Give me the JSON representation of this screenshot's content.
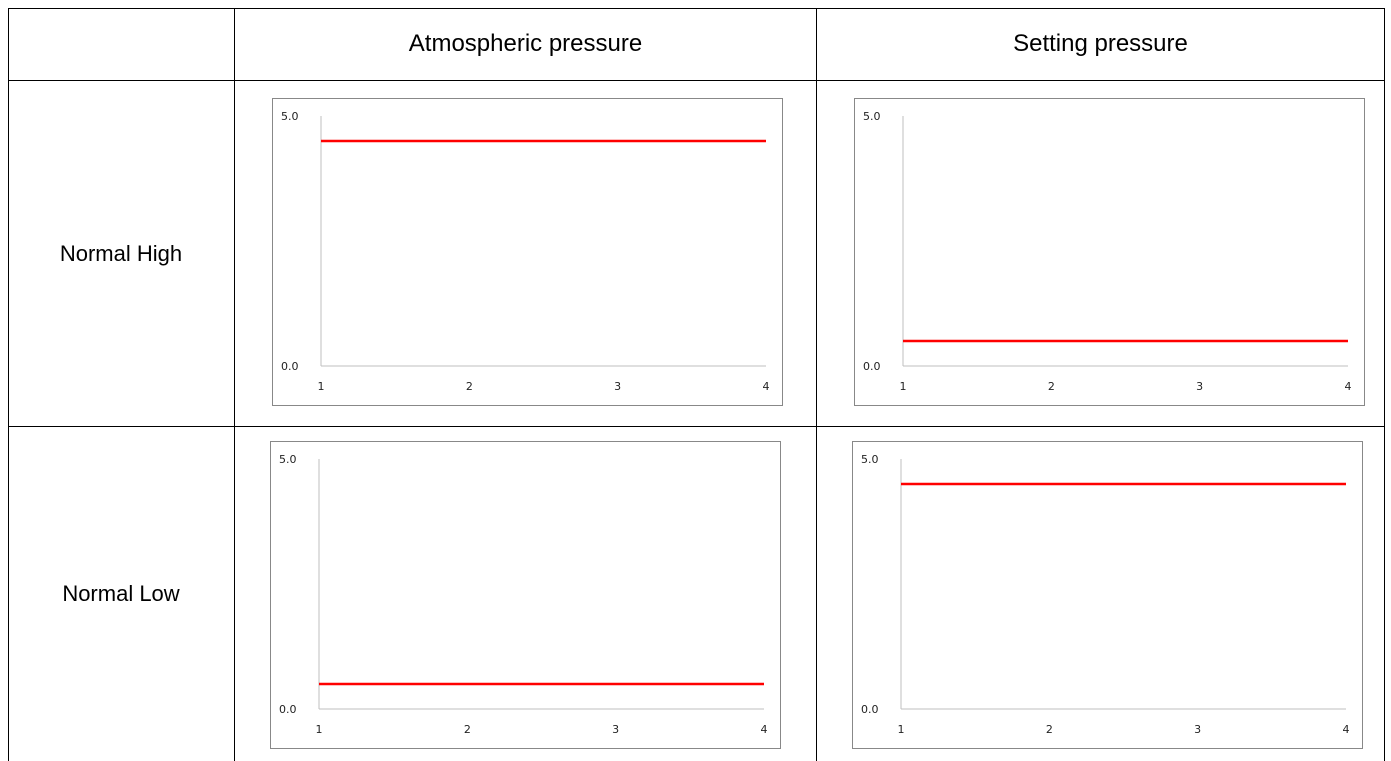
{
  "table": {
    "column_headers": [
      "",
      "Atmospheric pressure",
      "Setting pressure"
    ],
    "row_labels": [
      "Normal High",
      "Normal Low"
    ]
  },
  "colors": {
    "line": "#ff0000",
    "axis": "#bfbfbf",
    "border": "#888888"
  },
  "chart_data": [
    {
      "type": "line",
      "row": "Normal High",
      "column": "Atmospheric pressure",
      "x": [
        1,
        2,
        3,
        4
      ],
      "y": [
        4.5,
        4.5,
        4.5,
        4.5
      ],
      "ylim": [
        0.0,
        5.0
      ],
      "yticks": [
        "0.0",
        "5.0"
      ],
      "xticks": [
        "1",
        "2",
        "3",
        "4"
      ],
      "grid": false,
      "legend": "none"
    },
    {
      "type": "line",
      "row": "Normal High",
      "column": "Setting pressure",
      "x": [
        1,
        2,
        3,
        4
      ],
      "y": [
        0.5,
        0.5,
        0.5,
        0.5
      ],
      "ylim": [
        0.0,
        5.0
      ],
      "yticks": [
        "0.0",
        "5.0"
      ],
      "xticks": [
        "1",
        "2",
        "3",
        "4"
      ],
      "grid": false,
      "legend": "none"
    },
    {
      "type": "line",
      "row": "Normal Low",
      "column": "Atmospheric pressure",
      "x": [
        1,
        2,
        3,
        4
      ],
      "y": [
        0.5,
        0.5,
        0.5,
        0.5
      ],
      "ylim": [
        0.0,
        5.0
      ],
      "yticks": [
        "0.0",
        "5.0"
      ],
      "xticks": [
        "1",
        "2",
        "3",
        "4"
      ],
      "grid": false,
      "legend": "none"
    },
    {
      "type": "line",
      "row": "Normal Low",
      "column": "Setting pressure",
      "x": [
        1,
        2,
        3,
        4
      ],
      "y": [
        4.5,
        4.5,
        4.5,
        4.5
      ],
      "ylim": [
        0.0,
        5.0
      ],
      "yticks": [
        "0.0",
        "5.0"
      ],
      "xticks": [
        "1",
        "2",
        "3",
        "4"
      ],
      "grid": false,
      "legend": "none"
    }
  ]
}
